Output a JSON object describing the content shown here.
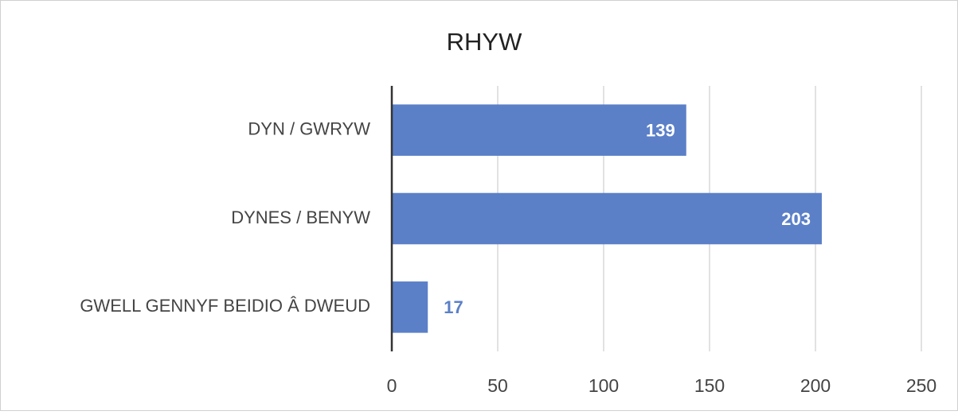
{
  "chart_data": {
    "type": "bar",
    "orientation": "horizontal",
    "title": "RHYW",
    "categories": [
      "DYN / GWRYW",
      "DYNES / BENYW",
      "GWELL GENNYF BEIDIO Â DWEUD"
    ],
    "values": [
      139,
      203,
      17
    ],
    "color": "#5b80c8",
    "xlim": [
      0,
      250
    ],
    "xticks": [
      0,
      50,
      100,
      150,
      200,
      250
    ],
    "grid": true
  }
}
